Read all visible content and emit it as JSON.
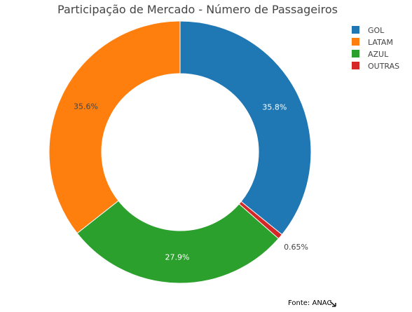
{
  "chart_data": {
    "type": "pie",
    "hole": true,
    "title": "Participação de Mercado - Número de Passageiros",
    "categories": [
      "GOL",
      "LATAM",
      "AZUL",
      "OUTRAS"
    ],
    "values": [
      35.8,
      35.6,
      27.9,
      0.65
    ],
    "labels": [
      "35.8%",
      "35.6%",
      "27.9%",
      "0.65%"
    ],
    "colors": [
      "#1f77b4",
      "#ff7f0e",
      "#2ca02c",
      "#d62728"
    ],
    "legend_position": "top-right",
    "annotation": "Fonte: ANAC"
  }
}
